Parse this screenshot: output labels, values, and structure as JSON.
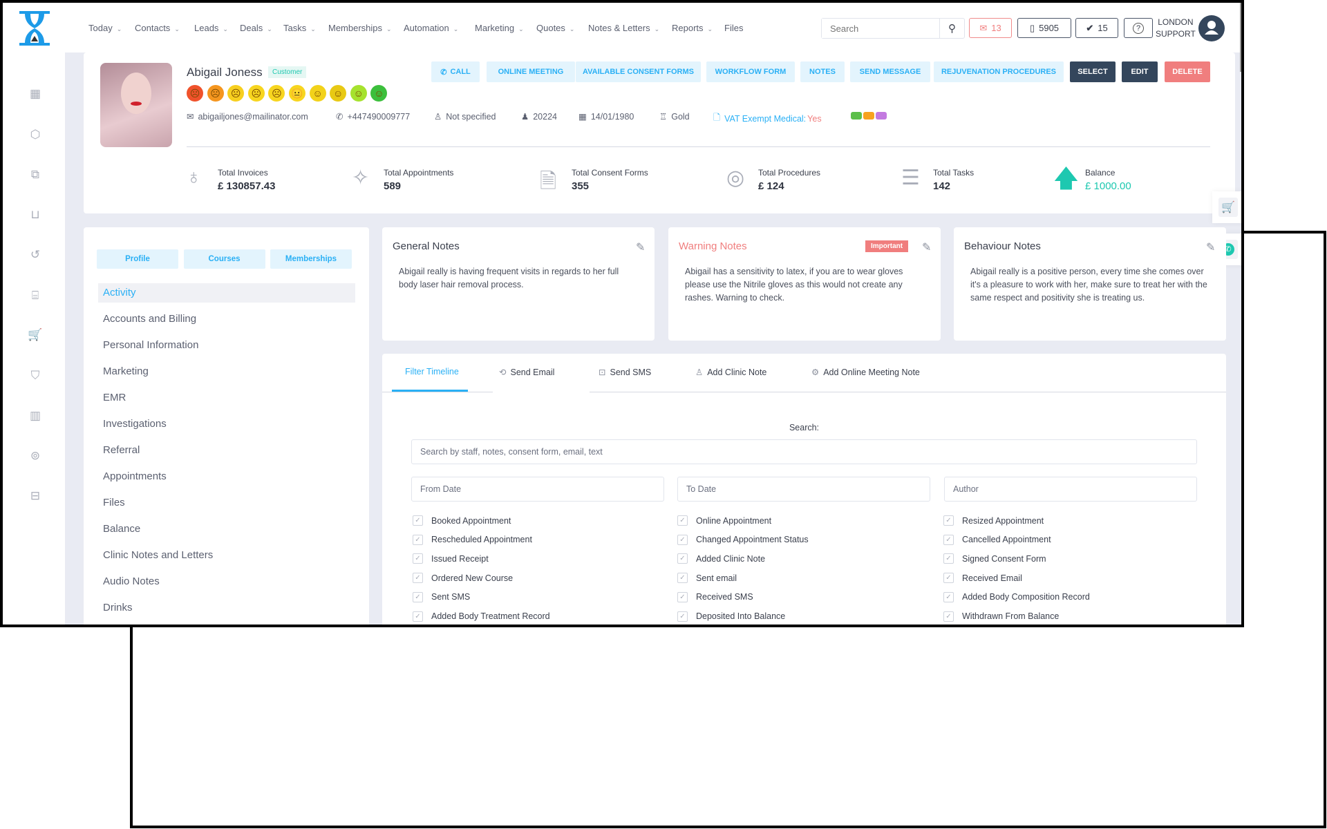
{
  "nav": {
    "items": [
      {
        "label": "Today",
        "chev": "⌄"
      },
      {
        "label": "Contacts",
        "chev": "⌄"
      },
      {
        "label": "Leads",
        "chev": "⌄"
      },
      {
        "label": "Deals",
        "chev": "⌄"
      },
      {
        "label": "Tasks",
        "chev": "⌄"
      },
      {
        "label": "Memberships",
        "chev": "⌄"
      },
      {
        "label": "Automation",
        "chev": "⌄"
      },
      {
        "label": "Marketing",
        "chev": "⌄"
      },
      {
        "label": "Quotes",
        "chev": "⌄"
      },
      {
        "label": "Notes & Letters",
        "chev": "⌄"
      },
      {
        "label": "Reports",
        "chev": "⌄"
      },
      {
        "label": "Files",
        "chev": ""
      }
    ]
  },
  "header": {
    "search_placeholder": "Search",
    "mail_count": "13",
    "phone_count": "5905",
    "tasks_count": "15",
    "help": "?",
    "user_line1": "LONDON",
    "user_line2": "SUPPORT"
  },
  "sidebar": {
    "icons": [
      "calendar-icon",
      "box-icon",
      "copy-icon",
      "bag-icon",
      "history-icon",
      "gift-icon",
      "cart-icon",
      "tag-icon",
      "report-icon",
      "user-sync-icon",
      "lock-icon"
    ]
  },
  "profile": {
    "name": "Abigail Joness",
    "badge": "Customer",
    "buttons": {
      "call": "CALL",
      "online_meeting": "ONLINE MEETING",
      "consent": "AVAILABLE CONSENT FORMS",
      "workflow": "WORKFLOW FORM",
      "notes": "NOTES",
      "send_message": "SEND MESSAGE",
      "rejuvenation": "REJUVENATION PROCEDURES",
      "select": "SELECT",
      "edit": "EDIT",
      "delete": "DELETE"
    },
    "ratings": [
      "#f0522b",
      "#f5961f",
      "#f7cf1f",
      "#f7d51f",
      "#f7d51f",
      "#f7d51f",
      "#f2d21a",
      "#e8c914",
      "#a6e22e",
      "#3cbf3c"
    ],
    "email": "abigailjones@mailinator.com",
    "phone": "+447490009777",
    "gender": "Not specified",
    "id": "20224",
    "dob": "14/01/1980",
    "tier": "Gold",
    "vat_label": "VAT Exempt Medical:",
    "vat_value": "Yes",
    "tags": [
      "#5cbf4a",
      "#f7a21f",
      "#c37ae0"
    ]
  },
  "stats": [
    {
      "label": "Total Invoices",
      "value": "£ 130857.43",
      "icon": "piggy-bank-icon"
    },
    {
      "label": "Total Appointments",
      "value": "589",
      "icon": "stars-icon"
    },
    {
      "label": "Total Consent Forms",
      "value": "355",
      "icon": "document-icon"
    },
    {
      "label": "Total Procedures",
      "value": "£ 124",
      "icon": "lifebuoy-icon"
    },
    {
      "label": "Total Tasks",
      "value": "142",
      "icon": "checklist-icon"
    },
    {
      "label": "Balance",
      "value": "£ 1000.00",
      "icon": "arrow-up-icon"
    }
  ],
  "left_panel": {
    "tabs": [
      "Profile",
      "Courses",
      "Memberships"
    ],
    "menu": [
      "Activity",
      "Accounts and Billing",
      "Personal Information",
      "Marketing",
      "EMR",
      "Investigations",
      "Referral",
      "Appointments",
      "Files",
      "Balance",
      "Clinic Notes and Letters",
      "Audio Notes",
      "Drinks"
    ],
    "active": "Activity"
  },
  "notes": {
    "general": {
      "title": "General Notes",
      "text": "Abigail really is having frequent visits in regards to her full body laser hair removal process."
    },
    "warning": {
      "title": "Warning Notes",
      "badge": "Important",
      "text": "Abigail has a sensitivity to latex, if you are to wear gloves please use the Nitrile gloves as this would not create any rashes. Warning to check."
    },
    "behaviour": {
      "title": "Behaviour Notes",
      "text": "Abigail really is a positive person, every time she comes over it's a pleasure to work with her, make sure to treat her with the same respect and positivity she is treating us."
    }
  },
  "timeline": {
    "tabs": [
      "Filter Timeline",
      "Send Email",
      "Send SMS",
      "Add Clinic Note",
      "Add Online Meeting Note"
    ],
    "active": "Filter Timeline",
    "search_label": "Search:",
    "search_placeholder": "Search by staff, notes, consent form, email, text",
    "from_placeholder": "From Date",
    "to_placeholder": "To Date",
    "author_placeholder": "Author",
    "filters": [
      [
        "Booked Appointment",
        "Online Appointment",
        "Resized Appointment"
      ],
      [
        "Rescheduled Appointment",
        "Changed Appointment Status",
        "Cancelled Appointment"
      ],
      [
        "Issued Receipt",
        "Added Clinic Note",
        "Signed Consent Form"
      ],
      [
        "Ordered New Course",
        "Sent email",
        "Received Email"
      ],
      [
        "Sent SMS",
        "Received SMS",
        "Added Body Composition Record"
      ],
      [
        "Added Body Treatment Record",
        "Deposited Into Balance",
        "Withdrawn From Balance"
      ]
    ]
  },
  "colors": {
    "accent": "#2ab0f5",
    "dark": "#34465c",
    "danger": "#f07e7e",
    "teal": "#1ec8b0",
    "warning_title": "#f07e7e"
  }
}
